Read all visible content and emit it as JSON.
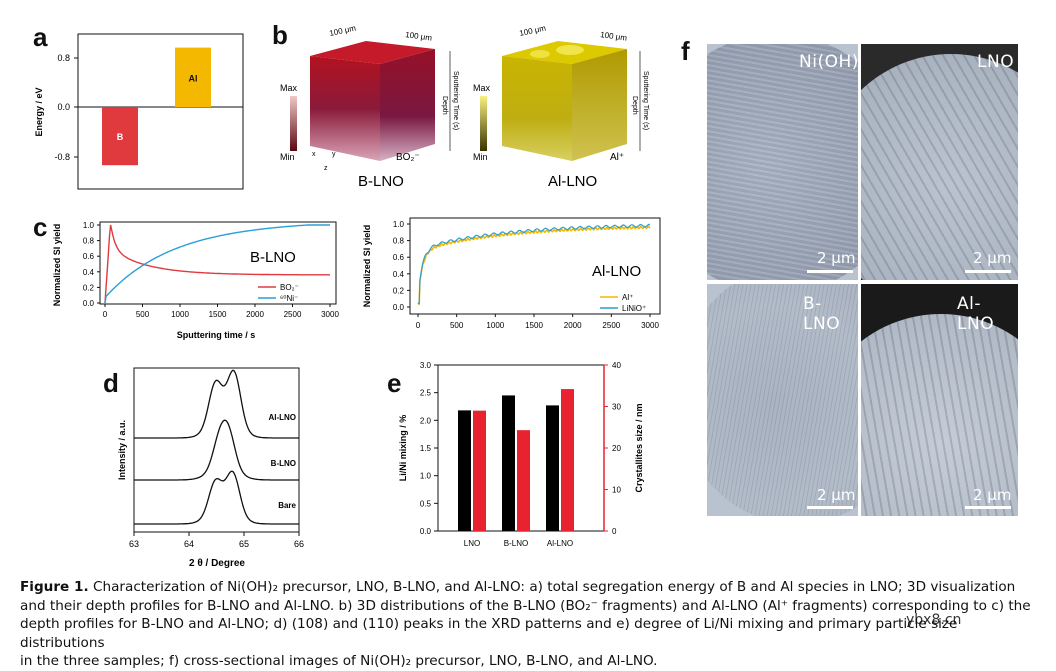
{
  "panels": {
    "a": "a",
    "b": "b",
    "c": "c",
    "d": "d",
    "e": "e",
    "f": "f"
  },
  "panel_a": {
    "ylabel": "Energy / eV",
    "yticks": [
      "0.8",
      "0.0",
      "-0.8"
    ],
    "colors": {
      "B": "#e03a3e",
      "Al": "#f5b800"
    },
    "chart_data": {
      "type": "bar",
      "categories": [
        "B",
        "Al"
      ],
      "values": [
        -0.95,
        0.97
      ],
      "ylabel": "Energy / eV",
      "ylim": [
        -1.3,
        1.0
      ]
    }
  },
  "panel_b": {
    "dim1": "100 μm",
    "dim2": "100 μm",
    "dim3": "100 μm",
    "dim4": "100 μm",
    "scale_max": "Max",
    "scale_min": "Min",
    "scale_max2": "Max",
    "scale_min2": "Min",
    "axis_depth": "Depth",
    "axis_time": "Sputtering Time (s)",
    "axis_depth2": "Depth",
    "axis_time2": "Sputtering Time (s)",
    "species1": "BO₂⁻",
    "species2": "Al⁺",
    "title1": "B-LNO",
    "title2": "Al-LNO",
    "ax_x": "x",
    "ax_y": "y",
    "ax_z": "z"
  },
  "panel_c": {
    "chart_data": [
      {
        "type": "line",
        "title": "B-LNO",
        "ylabel": "Normalized SI yield",
        "xlabel": "Sputtering time / s",
        "xlim": [
          0,
          3000
        ],
        "ylim": [
          0,
          1.0
        ],
        "series": [
          {
            "name": "BO₂⁻",
            "color": "#e03a3e"
          },
          {
            "name": "⁶⁰Ni⁻",
            "color": "#2a9fd6"
          }
        ],
        "xticks": [
          "0",
          "500",
          "1000",
          "1500",
          "2000",
          "2500",
          "3000"
        ],
        "yticks": [
          "0.0",
          "0.2",
          "0.4",
          "0.6",
          "0.8",
          "1.0"
        ]
      },
      {
        "type": "line",
        "title": "Al-LNO",
        "ylabel": "Normalized SI yield",
        "xlim": [
          0,
          3000
        ],
        "ylim": [
          0,
          1.0
        ],
        "series": [
          {
            "name": "Al⁺",
            "color": "#f5b800"
          },
          {
            "name": "LiNiO⁺",
            "color": "#2a9fd6"
          }
        ],
        "xticks": [
          "0",
          "500",
          "1000",
          "1500",
          "2000",
          "2500",
          "3000"
        ],
        "yticks": [
          "0.0",
          "0.2",
          "0.4",
          "0.6",
          "0.8",
          "1.0"
        ]
      }
    ]
  },
  "panel_d": {
    "ylabel": "Intensity / a.u.",
    "xlabel": "2 θ / Degree",
    "xticks": [
      "63",
      "64",
      "65",
      "66"
    ],
    "chart_data": {
      "type": "line",
      "series": [
        {
          "name": "Al-LNO"
        },
        {
          "name": "B-LNO"
        },
        {
          "name": "Bare"
        }
      ],
      "xlim": [
        63,
        66
      ]
    }
  },
  "panel_e": {
    "chart_data": {
      "type": "bar",
      "categories": [
        "LNO",
        "B-LNO",
        "Al-LNO"
      ],
      "series": [
        {
          "name": "Li/Ni mixing / %",
          "values": [
            2.18,
            2.45,
            2.27
          ],
          "color": "#000000"
        },
        {
          "name": "Crystallites size / nm",
          "values": [
            29,
            24.3,
            34.2
          ],
          "color": "#e8222e"
        }
      ],
      "ylabel": "Li/Ni mixing / %",
      "ylabel2": "Crystallites size / nm",
      "ylim": [
        0,
        3.0
      ],
      "ylim2": [
        0,
        40
      ],
      "yticks": [
        "0.0",
        "0.5",
        "1.0",
        "1.5",
        "2.0",
        "2.5",
        "3.0"
      ],
      "yticks2": [
        "0",
        "10",
        "20",
        "30",
        "40"
      ]
    }
  },
  "panel_f": {
    "images": [
      {
        "label": "Ni(OH)",
        "scale": "2 μm"
      },
      {
        "label": "LNO",
        "scale": "2 μm"
      },
      {
        "label": "B-LNO",
        "scale": "2 μm"
      },
      {
        "label": "Al-LNO",
        "scale": "2 μm"
      }
    ]
  },
  "watermark": "ybx8.cn",
  "caption": {
    "fig": "Figure 1.",
    "line1": "Characterization of Ni(OH)₂ precursor, LNO, B-LNO, and Al-LNO: a) total segregation energy of B and Al species in LNO; 3D visualization",
    "line2": "and their depth profiles for B-LNO and Al-LNO. b) 3D distributions of the B-LNO (BO₂⁻ fragments) and Al-LNO (Al⁺ fragments) corresponding to c) the",
    "line3": "depth profiles for B-LNO and Al-LNO; d) (108) and (110) peaks in the XRD patterns and e) degree of Li/Ni mixing and primary particle size distributions",
    "line4": "in the three samples; f) cross-sectional images of Ni(OH)₂ precursor, LNO, B-LNO, and Al-LNO."
  }
}
